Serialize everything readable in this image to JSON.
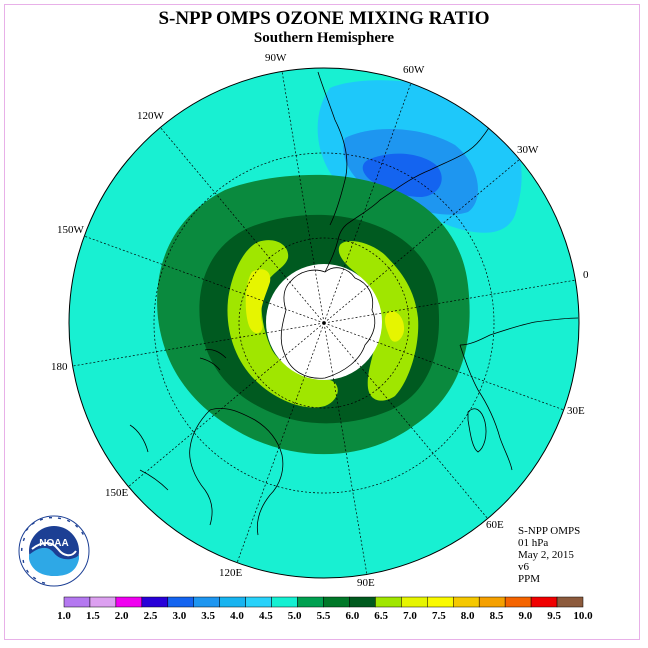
{
  "title": "S-NPP OMPS OZONE MIXING RATIO",
  "subtitle": "Southern Hemisphere",
  "longitude_labels": [
    "90W",
    "60W",
    "30W",
    "0",
    "30E",
    "60E",
    "90E",
    "120E",
    "150E",
    "180",
    "150W",
    "120W"
  ],
  "info": {
    "instrument": "S-NPP OMPS",
    "level": "01 hPa",
    "date": "May 2, 2015",
    "version": "v6",
    "units": "PPM"
  },
  "logo": {
    "text": "NOAA",
    "ring_text": "NATIONAL OCEANIC AND ATMOSPHERIC ADMINISTRATION · U.S. DEPARTMENT OF COMMERCE"
  },
  "colorbar": {
    "labels": [
      "1.0",
      "1.5",
      "2.0",
      "2.5",
      "3.0",
      "3.5",
      "4.0",
      "4.5",
      "5.0",
      "5.5",
      "6.0",
      "6.5",
      "7.0",
      "7.5",
      "8.0",
      "8.5",
      "9.0",
      "9.5",
      "10.0"
    ],
    "colors": [
      "#b478f0",
      "#dca0f0",
      "#f000f0",
      "#2800d8",
      "#1464f0",
      "#1e96f0",
      "#18b4f0",
      "#28d2fa",
      "#14f0d2",
      "#00a050",
      "#007828",
      "#005a1e",
      "#a0e600",
      "#e6f500",
      "#fafa00",
      "#f5c800",
      "#f5a000",
      "#f56400",
      "#f00000",
      "#8c5a3c"
    ]
  },
  "colors": {
    "background_field": "#18f0d2",
    "mid_ring": "#0a8a3e",
    "inner_ring": "#005a20",
    "max_ring": "#a0e600",
    "peak": "#e6f500",
    "low_outer": "#1ec8fa",
    "low_mid": "#1e96f0",
    "low_core": "#1464f0",
    "pole_gap": "#ffffff"
  }
}
